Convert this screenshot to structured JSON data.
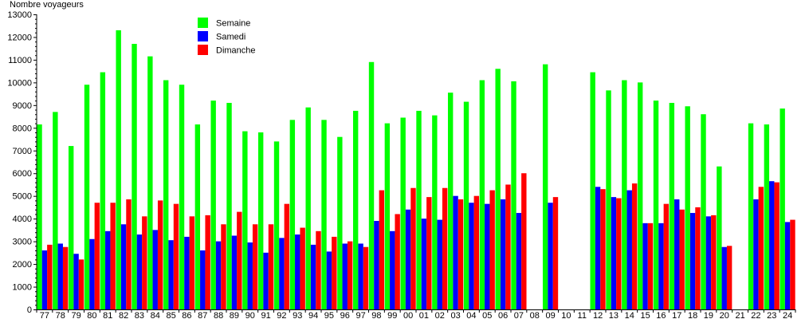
{
  "chart_data": {
    "type": "bar",
    "title": "",
    "xlabel": "",
    "ylabel": "Nombre voyageurs",
    "ylim": [
      0,
      13000
    ],
    "yticks": [
      0,
      1000,
      2000,
      3000,
      4000,
      5000,
      6000,
      7000,
      8000,
      9000,
      10000,
      11000,
      12000,
      13000
    ],
    "grid": false,
    "legend_position": "top-left",
    "categories": [
      "77",
      "78",
      "79",
      "80",
      "81",
      "82",
      "83",
      "84",
      "85",
      "86",
      "87",
      "88",
      "89",
      "90",
      "91",
      "92",
      "93",
      "94",
      "95",
      "96",
      "97",
      "98",
      "99",
      "00",
      "01",
      "02",
      "03",
      "04",
      "05",
      "06",
      "07",
      "08",
      "09",
      "10",
      "11",
      "12",
      "13",
      "14",
      "15",
      "16",
      "17",
      "18",
      "19",
      "20",
      "21",
      "22",
      "23",
      "24"
    ],
    "series": [
      {
        "name": "Semaine",
        "color": "#00ff00",
        "values": [
          8150,
          8700,
          7200,
          9900,
          10450,
          12300,
          11700,
          11150,
          10100,
          9900,
          8150,
          9200,
          9100,
          7850,
          7800,
          7400,
          8350,
          8900,
          8350,
          7600,
          8750,
          10900,
          8200,
          8450,
          8750,
          8550,
          9550,
          9150,
          10100,
          10600,
          10050,
          null,
          10800,
          null,
          null,
          10450,
          9650,
          10100,
          10000,
          9200,
          9100,
          8950,
          8600,
          6300,
          null,
          8200,
          8150,
          8850
        ]
      },
      {
        "name": "Samedi",
        "color": "#0000ff",
        "values": [
          2600,
          2900,
          2450,
          3100,
          3450,
          3750,
          3300,
          3500,
          3050,
          3200,
          2600,
          3000,
          3250,
          2950,
          2500,
          3150,
          3300,
          2850,
          2550,
          2900,
          2900,
          3900,
          3450,
          4400,
          4000,
          3950,
          5000,
          4700,
          4650,
          4850,
          4250,
          null,
          4700,
          null,
          null,
          5400,
          4950,
          5250,
          3800,
          3800,
          4850,
          4250,
          4100,
          2750,
          null,
          4850,
          5650,
          3850
        ]
      },
      {
        "name": "Dimanche",
        "color": "#ff0000",
        "values": [
          2850,
          2750,
          2200,
          4700,
          4700,
          4850,
          4100,
          4800,
          4650,
          4100,
          4150,
          3750,
          4300,
          3750,
          3750,
          4650,
          3600,
          3450,
          3200,
          3000,
          2750,
          5250,
          4200,
          5350,
          4950,
          5350,
          4850,
          5000,
          5250,
          5500,
          6000,
          null,
          4950,
          null,
          null,
          5300,
          4900,
          5550,
          3800,
          4650,
          4400,
          4500,
          4150,
          2800,
          null,
          5400,
          5600,
          3950
        ]
      }
    ]
  }
}
